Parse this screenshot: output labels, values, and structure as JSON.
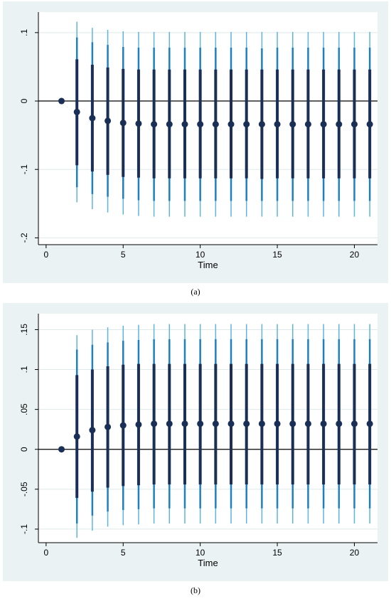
{
  "chart_data": [
    {
      "type": "scatter",
      "title": "",
      "xlabel": "Time",
      "ylabel": "",
      "xlim": [
        -0.5,
        21.5
      ],
      "ylim": [
        -0.21,
        0.13
      ],
      "xticks": [
        0,
        5,
        10,
        15,
        20
      ],
      "yticks": [
        -0.2,
        -0.1,
        0,
        0.1
      ],
      "yticklabels": [
        "-.2",
        "-.1",
        "0",
        ".1"
      ],
      "xticklabels": [
        "0",
        "5",
        "10",
        "15",
        "20"
      ],
      "grid": true,
      "x": [
        1,
        2,
        3,
        4,
        5,
        6,
        7,
        8,
        9,
        10,
        11,
        12,
        13,
        14,
        15,
        16,
        17,
        18,
        19,
        20,
        21
      ],
      "series": [
        {
          "values": [
            0.0,
            -0.016,
            -0.025,
            -0.029,
            -0.032,
            -0.033,
            -0.034,
            -0.034,
            -0.034,
            -0.034,
            -0.034,
            -0.034,
            -0.034,
            -0.034,
            -0.034,
            -0.034,
            -0.034,
            -0.034,
            -0.034,
            -0.034,
            -0.034
          ]
        },
        {
          "values": [
            0.0,
            0.061,
            0.053,
            0.049,
            0.047,
            0.046,
            0.046,
            0.046,
            0.046,
            0.046,
            0.046,
            0.046,
            0.046,
            0.046,
            0.046,
            0.046,
            0.046,
            0.046,
            0.046,
            0.046,
            0.046
          ]
        },
        {
          "values": [
            0.0,
            -0.094,
            -0.103,
            -0.108,
            -0.111,
            -0.112,
            -0.113,
            -0.113,
            -0.113,
            -0.113,
            -0.113,
            -0.113,
            -0.113,
            -0.114,
            -0.113,
            -0.113,
            -0.113,
            -0.113,
            -0.113,
            -0.113,
            -0.113
          ]
        },
        {
          "values": [
            0.0,
            0.093,
            0.086,
            0.082,
            0.079,
            0.078,
            0.078,
            0.078,
            0.078,
            0.078,
            0.078,
            0.078,
            0.078,
            0.077,
            0.078,
            0.078,
            0.078,
            0.078,
            0.078,
            0.078,
            0.078
          ]
        },
        {
          "values": [
            0.0,
            -0.126,
            -0.136,
            -0.14,
            -0.143,
            -0.145,
            -0.146,
            -0.146,
            -0.146,
            -0.146,
            -0.146,
            -0.146,
            -0.146,
            -0.146,
            -0.146,
            -0.146,
            -0.146,
            -0.146,
            -0.146,
            -0.146,
            -0.146
          ]
        },
        {
          "values": [
            0.0,
            0.116,
            0.107,
            0.104,
            0.102,
            0.101,
            0.101,
            0.101,
            0.101,
            0.101,
            0.101,
            0.101,
            0.101,
            0.101,
            0.101,
            0.101,
            0.101,
            0.101,
            0.101,
            0.101,
            0.101
          ]
        },
        {
          "values": [
            0.0,
            -0.148,
            -0.158,
            -0.163,
            -0.166,
            -0.168,
            -0.169,
            -0.169,
            -0.169,
            -0.169,
            -0.169,
            -0.169,
            -0.169,
            -0.169,
            -0.169,
            -0.169,
            -0.169,
            -0.169,
            -0.169,
            -0.169,
            -0.169
          ]
        }
      ]
    },
    {
      "type": "scatter",
      "title": "",
      "xlabel": "Time",
      "ylabel": "",
      "xlim": [
        -0.5,
        21.5
      ],
      "ylim": [
        -0.117,
        0.17
      ],
      "xticks": [
        0,
        5,
        10,
        15,
        20
      ],
      "yticks": [
        -0.1,
        -0.05,
        0,
        0.05,
        0.1,
        0.15
      ],
      "yticklabels": [
        "-.1",
        "-.05",
        "0",
        ".05",
        ".1",
        ".15"
      ],
      "xticklabels": [
        "0",
        "5",
        "10",
        "15",
        "20"
      ],
      "grid": true,
      "x": [
        1,
        2,
        3,
        4,
        5,
        6,
        7,
        8,
        9,
        10,
        11,
        12,
        13,
        14,
        15,
        16,
        17,
        18,
        19,
        20,
        21
      ],
      "series": [
        {
          "values": [
            0.0,
            0.016,
            0.024,
            0.028,
            0.03,
            0.031,
            0.032,
            0.032,
            0.032,
            0.032,
            0.032,
            0.032,
            0.032,
            0.032,
            0.032,
            0.032,
            0.032,
            0.032,
            0.032,
            0.032,
            0.032
          ]
        },
        {
          "values": [
            0.0,
            0.093,
            0.1,
            0.104,
            0.106,
            0.107,
            0.107,
            0.107,
            0.107,
            0.107,
            0.107,
            0.107,
            0.107,
            0.107,
            0.107,
            0.107,
            0.107,
            0.107,
            0.107,
            0.107,
            0.107
          ]
        },
        {
          "values": [
            0.0,
            -0.061,
            -0.053,
            -0.048,
            -0.046,
            -0.045,
            -0.044,
            -0.044,
            -0.044,
            -0.044,
            -0.044,
            -0.044,
            -0.044,
            -0.044,
            -0.044,
            -0.044,
            -0.044,
            -0.044,
            -0.044,
            -0.044,
            -0.044
          ]
        },
        {
          "values": [
            0.0,
            0.125,
            0.131,
            0.134,
            0.136,
            0.137,
            0.138,
            0.138,
            0.138,
            0.138,
            0.138,
            0.138,
            0.138,
            0.138,
            0.138,
            0.138,
            0.138,
            0.138,
            0.138,
            0.138,
            0.138
          ]
        },
        {
          "values": [
            0.0,
            -0.093,
            -0.083,
            -0.078,
            -0.076,
            -0.075,
            -0.074,
            -0.074,
            -0.074,
            -0.074,
            -0.074,
            -0.074,
            -0.074,
            -0.074,
            -0.074,
            -0.074,
            -0.074,
            -0.074,
            -0.074,
            -0.074,
            -0.074
          ]
        },
        {
          "values": [
            0.0,
            0.143,
            0.15,
            0.153,
            0.155,
            0.156,
            0.157,
            0.157,
            0.157,
            0.157,
            0.157,
            0.157,
            0.157,
            0.157,
            0.157,
            0.157,
            0.157,
            0.157,
            0.157,
            0.157,
            0.157
          ]
        },
        {
          "values": [
            0.0,
            -0.111,
            -0.102,
            -0.097,
            -0.095,
            -0.094,
            -0.093,
            -0.093,
            -0.093,
            -0.093,
            -0.093,
            -0.093,
            -0.093,
            -0.093,
            -0.093,
            -0.093,
            -0.093,
            -0.093,
            -0.093,
            -0.093,
            -0.093
          ]
        }
      ]
    }
  ],
  "captions": {
    "a": "(a)",
    "b": "(b)"
  },
  "colors": {
    "panel_bg": "#eaf2f3",
    "plot_bg": "#ffffff",
    "grid": "#dfe9ea",
    "axis": "#000000",
    "zero_line": "#000000",
    "point": "#1a2f55",
    "band_inner": "#1a2f55",
    "band_middle": "#1f7fbf",
    "band_outer": "#5fb4df"
  }
}
